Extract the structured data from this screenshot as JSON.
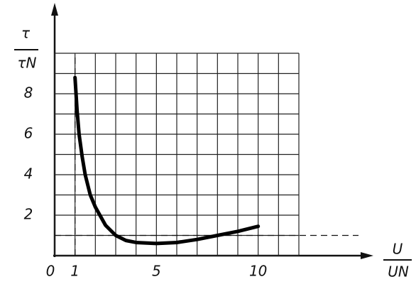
{
  "chart_data": {
    "type": "line",
    "ylabel": {
      "numerator": "τ",
      "denominator": "τN"
    },
    "xlabel": {
      "numerator": "U",
      "denominator": "UN"
    },
    "x": [
      1,
      1.1,
      1.2,
      1.35,
      1.5,
      1.75,
      2,
      2.5,
      3,
      3.5,
      4,
      5,
      6,
      7,
      8,
      9,
      10
    ],
    "series": [
      {
        "color": "#000000",
        "values": [
          8.8,
          7.2,
          6,
          4.9,
          4,
          3,
          2.4,
          1.5,
          1,
          0.75,
          0.65,
          0.6,
          0.65,
          0.8,
          1,
          1.2,
          1.45
        ]
      }
    ],
    "xlim": [
      0,
      12
    ],
    "ylim": [
      0,
      10
    ],
    "xticks": [
      0,
      1,
      5,
      10
    ],
    "yticks": [
      2,
      4,
      6,
      8
    ],
    "xgrid": [
      0,
      1,
      2,
      3,
      4,
      5,
      6,
      7,
      8,
      9,
      10,
      11,
      12
    ],
    "ygrid": [
      0,
      1,
      2,
      3,
      4,
      5,
      6,
      7,
      8,
      9,
      10
    ],
    "ref_x": 1,
    "ref_y": 1
  }
}
